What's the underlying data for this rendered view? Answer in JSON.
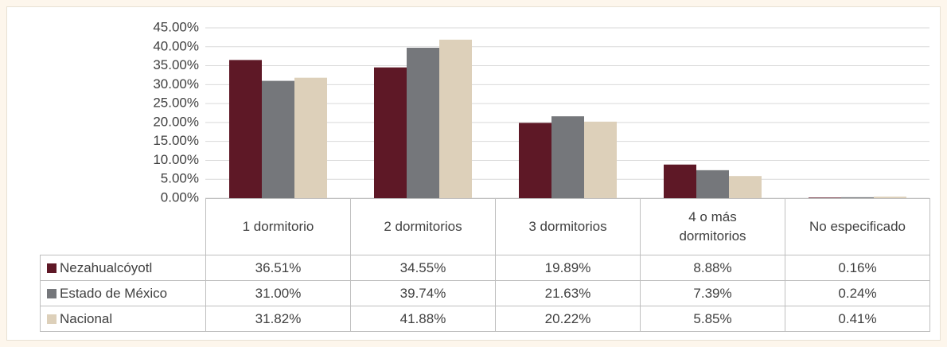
{
  "chart_data": {
    "type": "bar",
    "categories": [
      "1 dormitorio",
      "2 dormitorios",
      "3 dormitorios",
      "4 o más dormitorios",
      "No especificado"
    ],
    "series": [
      {
        "name": "Nezahualcóyotl",
        "color": "#5e1826",
        "values": [
          36.51,
          34.55,
          19.89,
          8.88,
          0.16
        ],
        "value_labels": [
          "36.51%",
          "34.55%",
          "19.89%",
          "8.88%",
          "0.16%"
        ]
      },
      {
        "name": "Estado de México",
        "color": "#75777b",
        "values": [
          31.0,
          39.74,
          21.63,
          7.39,
          0.24
        ],
        "value_labels": [
          "31.00%",
          "39.74%",
          "21.63%",
          "7.39%",
          "0.24%"
        ]
      },
      {
        "name": "Nacional",
        "color": "#ddd0ba",
        "values": [
          31.82,
          41.88,
          20.22,
          5.85,
          0.41
        ],
        "value_labels": [
          "31.82%",
          "41.88%",
          "20.22%",
          "5.85%",
          "0.41%"
        ]
      }
    ],
    "ylim": [
      0,
      45
    ],
    "yticks": [
      {
        "value": 0,
        "label": "0.00%"
      },
      {
        "value": 5,
        "label": "5.00%"
      },
      {
        "value": 10,
        "label": "10.00%"
      },
      {
        "value": 15,
        "label": "15.00%"
      },
      {
        "value": 20,
        "label": "20.00%"
      },
      {
        "value": 25,
        "label": "25.00%"
      },
      {
        "value": 30,
        "label": "30.00%"
      },
      {
        "value": 35,
        "label": "35.00%"
      },
      {
        "value": 40,
        "label": "40.00%"
      },
      {
        "value": 45,
        "label": "45.00%"
      }
    ],
    "grid": true,
    "legend": "table"
  }
}
